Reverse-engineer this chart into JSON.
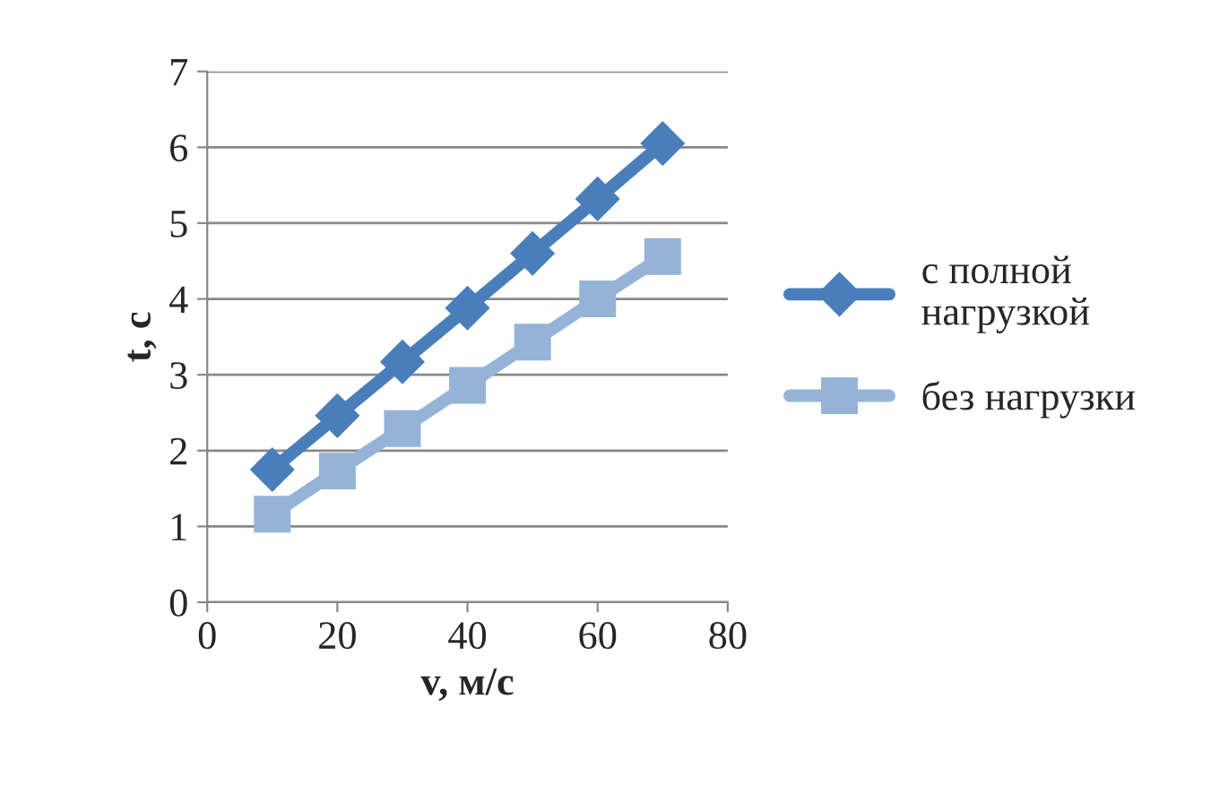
{
  "chart_data": {
    "type": "line",
    "xlabel": "v, м/с",
    "ylabel": "t, с",
    "x": [
      10,
      20,
      30,
      40,
      50,
      60,
      70
    ],
    "series": [
      {
        "name": "с полной нагрузкой",
        "color": "#4a7ebb",
        "marker": "diamond",
        "values": [
          1.75,
          2.46,
          3.17,
          3.88,
          4.6,
          5.32,
          6.05
        ]
      },
      {
        "name": "без нагрузки",
        "color": "#95b3d7",
        "marker": "square",
        "values": [
          1.16,
          1.73,
          2.29,
          2.86,
          3.43,
          4.0,
          4.56
        ]
      }
    ],
    "xlim": [
      0,
      80
    ],
    "xticks": [
      0,
      20,
      40,
      60,
      80
    ],
    "ylim": [
      0,
      7
    ],
    "yticks": [
      0,
      1,
      2,
      3,
      4,
      5,
      6,
      7
    ],
    "grid": "y",
    "legend": "right",
    "line_style": "solid"
  }
}
